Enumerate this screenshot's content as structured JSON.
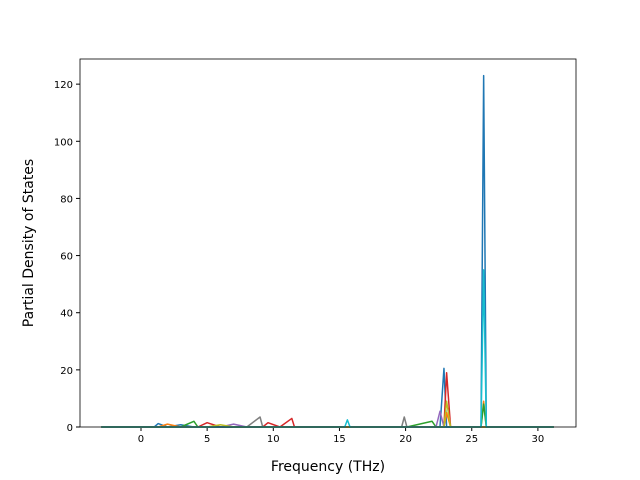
{
  "chart_data": {
    "type": "line",
    "x_label": "Frequency (THz)",
    "y_label": "Partial Density of States",
    "x": [
      -3,
      0.8,
      1.0,
      1.3,
      2,
      3,
      4,
      4.3,
      5,
      6,
      7,
      8,
      9,
      9.2,
      9.6,
      10.5,
      11.4,
      11.6,
      15.4,
      15.6,
      15.8,
      19.7,
      19.9,
      20.1,
      22,
      22.3,
      22.6,
      22.9,
      23.1,
      23.4,
      25.7,
      25.9,
      26.1,
      31.2
    ],
    "series": [
      {
        "color": "#1f77b4",
        "values": [
          0,
          0,
          0,
          1.2,
          0,
          0.8,
          0,
          0,
          0,
          0,
          0,
          0,
          0,
          0,
          0,
          0,
          0,
          0,
          0,
          0,
          0,
          0,
          0,
          0,
          0,
          0,
          0,
          20.5,
          0,
          0,
          0,
          123,
          0,
          0
        ]
      },
      {
        "color": "#ff7f0e",
        "values": [
          0,
          0,
          0,
          0,
          1,
          0,
          0,
          0,
          0,
          0,
          0,
          0,
          0,
          0,
          0,
          0,
          0,
          0,
          0,
          0,
          0,
          0,
          0,
          0,
          0,
          0,
          0,
          0,
          5,
          0,
          0,
          9,
          0,
          0
        ]
      },
      {
        "color": "#2ca02c",
        "values": [
          0,
          0,
          0,
          0,
          0,
          0,
          2,
          0,
          0,
          0,
          0,
          0,
          0,
          0,
          0,
          0,
          0,
          0,
          0,
          0,
          0,
          0,
          0,
          0,
          2,
          0,
          0,
          0,
          0,
          0,
          0,
          8,
          0,
          0
        ]
      },
      {
        "color": "#d62728",
        "values": [
          0,
          0,
          0,
          0,
          0,
          0,
          0,
          0,
          1.5,
          0,
          0,
          0,
          0,
          0,
          1.5,
          0,
          3,
          0,
          0,
          0,
          0,
          0,
          0,
          0,
          0,
          0,
          0,
          0,
          19,
          0,
          0,
          0,
          0,
          0
        ]
      },
      {
        "color": "#9467bd",
        "values": [
          0,
          0,
          0,
          0,
          0,
          0,
          0,
          0,
          0,
          0,
          1,
          0,
          0,
          0,
          0,
          0,
          0,
          0,
          0,
          0,
          0,
          0,
          0,
          0,
          0,
          0,
          5.5,
          0,
          0,
          0,
          0,
          0,
          0,
          0
        ]
      },
      {
        "color": "#7f7f7f",
        "values": [
          0,
          0,
          0,
          0,
          0,
          0,
          0,
          0,
          0,
          0,
          0,
          0,
          3.5,
          0,
          0,
          0,
          0,
          0,
          0,
          0,
          0,
          0,
          3.5,
          0,
          0,
          0,
          0,
          0,
          0,
          0,
          0,
          0,
          0,
          0
        ]
      },
      {
        "color": "#bcbd22",
        "values": [
          0,
          0,
          0,
          0,
          0,
          0,
          0,
          0,
          0,
          0.8,
          0,
          0,
          0,
          0,
          0,
          0,
          0,
          0,
          0,
          0,
          0,
          0,
          0,
          0,
          0,
          0,
          0,
          0,
          9,
          0,
          0,
          0,
          0,
          0
        ]
      },
      {
        "color": "#17becf",
        "values": [
          0,
          0,
          0,
          0,
          0,
          0,
          0,
          0,
          0,
          0,
          0,
          0,
          0,
          0,
          0,
          0,
          0,
          0,
          0,
          2.5,
          0,
          0,
          0,
          0,
          0,
          0,
          0,
          0,
          0,
          0,
          0,
          55,
          0,
          0
        ]
      }
    ],
    "xlim": [
      -4.61,
      32.88
    ],
    "xticks": [
      0,
      5,
      10,
      15,
      20,
      25,
      30
    ],
    "ylim": [
      0,
      128.8
    ],
    "yticks": [
      0,
      20,
      40,
      60,
      80,
      100,
      120
    ]
  }
}
